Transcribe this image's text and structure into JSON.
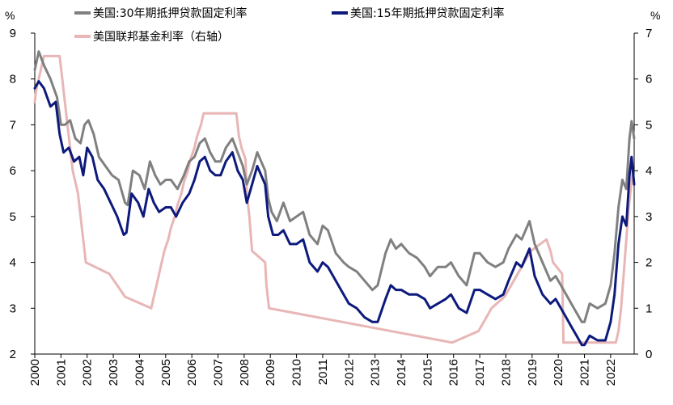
{
  "chart_data": {
    "type": "line",
    "left_axis": {
      "unit": "%",
      "ylim": [
        2,
        9
      ],
      "ticks": [
        2,
        3,
        4,
        5,
        6,
        7,
        8,
        9
      ]
    },
    "right_axis": {
      "unit": "%",
      "ylim": [
        0,
        7
      ],
      "ticks": [
        0,
        1,
        2,
        3,
        4,
        5,
        6,
        7
      ]
    },
    "x_range": [
      2000,
      2022.9
    ],
    "x_ticks": [
      "2000",
      "2001",
      "2002",
      "2003",
      "2004",
      "2005",
      "2006",
      "2007",
      "2008",
      "2009",
      "2010",
      "2011",
      "2012",
      "2013",
      "2014",
      "2015",
      "2016",
      "2017",
      "2018",
      "2019",
      "2020",
      "2021",
      "2022"
    ],
    "legend_position": "top",
    "series": [
      {
        "name": "美国:30年期抵押贷款固定利率",
        "axis": "left",
        "color": "#808080",
        "x": [
          2000.0,
          2000.15,
          2000.35,
          2000.6,
          2000.85,
          2001.0,
          2001.15,
          2001.35,
          2001.55,
          2001.75,
          2001.9,
          2002.05,
          2002.25,
          2002.45,
          2002.7,
          2002.95,
          2003.2,
          2003.45,
          2003.55,
          2003.75,
          2004.0,
          2004.2,
          2004.4,
          2004.6,
          2004.8,
          2005.0,
          2005.2,
          2005.45,
          2005.7,
          2005.9,
          2006.1,
          2006.3,
          2006.5,
          2006.7,
          2006.9,
          2007.1,
          2007.3,
          2007.55,
          2007.75,
          2007.95,
          2008.1,
          2008.3,
          2008.5,
          2008.65,
          2008.8,
          2008.92,
          2009.05,
          2009.25,
          2009.5,
          2009.75,
          2010.0,
          2010.25,
          2010.5,
          2010.8,
          2011.0,
          2011.2,
          2011.5,
          2011.8,
          2012.0,
          2012.3,
          2012.6,
          2012.9,
          2013.1,
          2013.4,
          2013.6,
          2013.8,
          2014.0,
          2014.3,
          2014.6,
          2014.9,
          2015.1,
          2015.4,
          2015.7,
          2015.9,
          2016.2,
          2016.5,
          2016.8,
          2017.0,
          2017.3,
          2017.6,
          2017.9,
          2018.1,
          2018.4,
          2018.6,
          2018.9,
          2019.1,
          2019.4,
          2019.7,
          2019.9,
          2020.1,
          2020.3,
          2020.5,
          2020.7,
          2020.9,
          2021.0,
          2021.2,
          2021.5,
          2021.8,
          2022.0,
          2022.15,
          2022.3,
          2022.45,
          2022.6,
          2022.72,
          2022.8,
          2022.9
        ],
        "values": [
          8.2,
          8.6,
          8.3,
          8.0,
          7.6,
          7.0,
          7.0,
          7.1,
          6.7,
          6.6,
          7.0,
          7.1,
          6.8,
          6.3,
          6.1,
          5.9,
          5.8,
          5.3,
          5.25,
          6.0,
          5.9,
          5.6,
          6.2,
          5.9,
          5.7,
          5.8,
          5.8,
          5.6,
          5.9,
          6.2,
          6.3,
          6.6,
          6.7,
          6.4,
          6.2,
          6.2,
          6.5,
          6.7,
          6.4,
          6.1,
          5.7,
          6.0,
          6.4,
          6.2,
          6.0,
          5.4,
          5.1,
          4.9,
          5.3,
          4.9,
          5.0,
          5.1,
          4.6,
          4.4,
          4.8,
          4.7,
          4.2,
          4.0,
          3.9,
          3.8,
          3.6,
          3.4,
          3.5,
          4.2,
          4.5,
          4.3,
          4.4,
          4.2,
          4.1,
          3.9,
          3.7,
          3.9,
          3.9,
          4.0,
          3.7,
          3.5,
          4.2,
          4.2,
          4.0,
          3.9,
          4.0,
          4.3,
          4.6,
          4.5,
          4.9,
          4.4,
          4.0,
          3.6,
          3.7,
          3.5,
          3.3,
          3.1,
          2.9,
          2.7,
          2.7,
          3.1,
          3.0,
          3.1,
          3.5,
          4.2,
          5.2,
          5.8,
          5.6,
          6.7,
          7.08,
          6.7
        ]
      },
      {
        "name": "美国:15年期抵押贷款固定利率",
        "axis": "left",
        "color": "#0d1a7c",
        "x": [
          2000.0,
          2000.15,
          2000.35,
          2000.6,
          2000.8,
          2000.95,
          2001.1,
          2001.3,
          2001.5,
          2001.7,
          2001.85,
          2002.0,
          2002.2,
          2002.4,
          2002.65,
          2002.9,
          2003.15,
          2003.4,
          2003.5,
          2003.7,
          2003.95,
          2004.15,
          2004.35,
          2004.55,
          2004.75,
          2005.0,
          2005.2,
          2005.4,
          2005.65,
          2005.9,
          2006.1,
          2006.3,
          2006.5,
          2006.7,
          2006.9,
          2007.1,
          2007.3,
          2007.55,
          2007.75,
          2007.95,
          2008.1,
          2008.3,
          2008.5,
          2008.65,
          2008.8,
          2008.92,
          2009.1,
          2009.3,
          2009.5,
          2009.75,
          2010.0,
          2010.25,
          2010.5,
          2010.8,
          2011.0,
          2011.2,
          2011.5,
          2011.8,
          2012.0,
          2012.3,
          2012.6,
          2012.9,
          2013.1,
          2013.4,
          2013.6,
          2013.8,
          2014.0,
          2014.3,
          2014.6,
          2014.9,
          2015.1,
          2015.4,
          2015.7,
          2015.9,
          2016.2,
          2016.5,
          2016.8,
          2017.0,
          2017.3,
          2017.6,
          2017.9,
          2018.1,
          2018.4,
          2018.6,
          2018.9,
          2019.1,
          2019.4,
          2019.7,
          2019.9,
          2020.1,
          2020.3,
          2020.5,
          2020.7,
          2020.9,
          2021.0,
          2021.2,
          2021.5,
          2021.8,
          2022.0,
          2022.15,
          2022.3,
          2022.45,
          2022.6,
          2022.72,
          2022.8,
          2022.9
        ],
        "values": [
          7.8,
          7.95,
          7.8,
          7.4,
          7.5,
          6.8,
          6.4,
          6.5,
          6.2,
          6.3,
          5.9,
          6.5,
          6.3,
          5.8,
          5.6,
          5.3,
          5.0,
          4.6,
          4.65,
          5.5,
          5.3,
          5.0,
          5.6,
          5.3,
          5.1,
          5.2,
          5.2,
          5.0,
          5.3,
          5.5,
          5.8,
          6.2,
          6.3,
          6.0,
          5.9,
          5.9,
          6.2,
          6.4,
          6.0,
          5.8,
          5.3,
          5.7,
          6.1,
          5.9,
          5.7,
          5.0,
          4.6,
          4.6,
          4.7,
          4.4,
          4.4,
          4.5,
          4.0,
          3.8,
          4.0,
          3.9,
          3.6,
          3.3,
          3.1,
          3.0,
          2.8,
          2.7,
          2.7,
          3.2,
          3.5,
          3.4,
          3.4,
          3.3,
          3.3,
          3.2,
          3.0,
          3.1,
          3.2,
          3.3,
          3.0,
          2.9,
          3.4,
          3.4,
          3.3,
          3.2,
          3.3,
          3.6,
          4.0,
          3.9,
          4.3,
          3.7,
          3.3,
          3.1,
          3.2,
          3.0,
          2.8,
          2.6,
          2.4,
          2.2,
          2.2,
          2.4,
          2.3,
          2.3,
          2.7,
          3.3,
          4.4,
          5.0,
          4.8,
          5.9,
          6.3,
          5.7
        ]
      },
      {
        "name": "美国联邦基金利率（右轴）",
        "axis": "right",
        "color": "#e8b6b6",
        "x": [
          2000.0,
          2000.05,
          2000.15,
          2000.35,
          2000.95,
          2001.05,
          2001.15,
          2001.25,
          2001.35,
          2001.45,
          2001.55,
          2001.65,
          2001.75,
          2001.85,
          2001.95,
          2002.85,
          2003.45,
          2004.45,
          2004.55,
          2004.65,
          2004.75,
          2004.85,
          2004.95,
          2005.1,
          2005.2,
          2005.35,
          2005.45,
          2005.6,
          2005.7,
          2005.85,
          2005.95,
          2006.1,
          2006.2,
          2006.35,
          2006.45,
          2007.7,
          2007.8,
          2007.9,
          2008.05,
          2008.1,
          2008.2,
          2008.3,
          2008.8,
          2008.85,
          2008.95,
          2015.95,
          2016.95,
          2017.2,
          2017.45,
          2017.95,
          2018.2,
          2018.45,
          2018.7,
          2018.95,
          2019.55,
          2019.7,
          2019.8,
          2020.15,
          2020.2,
          2022.2,
          2022.3,
          2022.4,
          2022.5,
          2022.6,
          2022.7,
          2022.85
        ],
        "values": [
          5.5,
          5.75,
          6.0,
          6.5,
          6.5,
          6.0,
          5.5,
          5.0,
          4.5,
          4.0,
          3.75,
          3.5,
          3.0,
          2.5,
          2.0,
          1.75,
          1.25,
          1.0,
          1.25,
          1.5,
          1.75,
          2.0,
          2.25,
          2.5,
          2.75,
          3.0,
          3.25,
          3.5,
          3.75,
          4.0,
          4.25,
          4.5,
          4.75,
          5.0,
          5.25,
          5.25,
          4.75,
          4.5,
          4.25,
          3.5,
          3.0,
          2.25,
          2.0,
          1.5,
          1.0,
          0.25,
          0.5,
          0.75,
          1.0,
          1.25,
          1.5,
          1.75,
          2.0,
          2.25,
          2.5,
          2.25,
          2.0,
          1.75,
          0.25,
          0.25,
          0.5,
          1.0,
          1.75,
          2.5,
          3.25,
          4.0
        ]
      }
    ]
  }
}
